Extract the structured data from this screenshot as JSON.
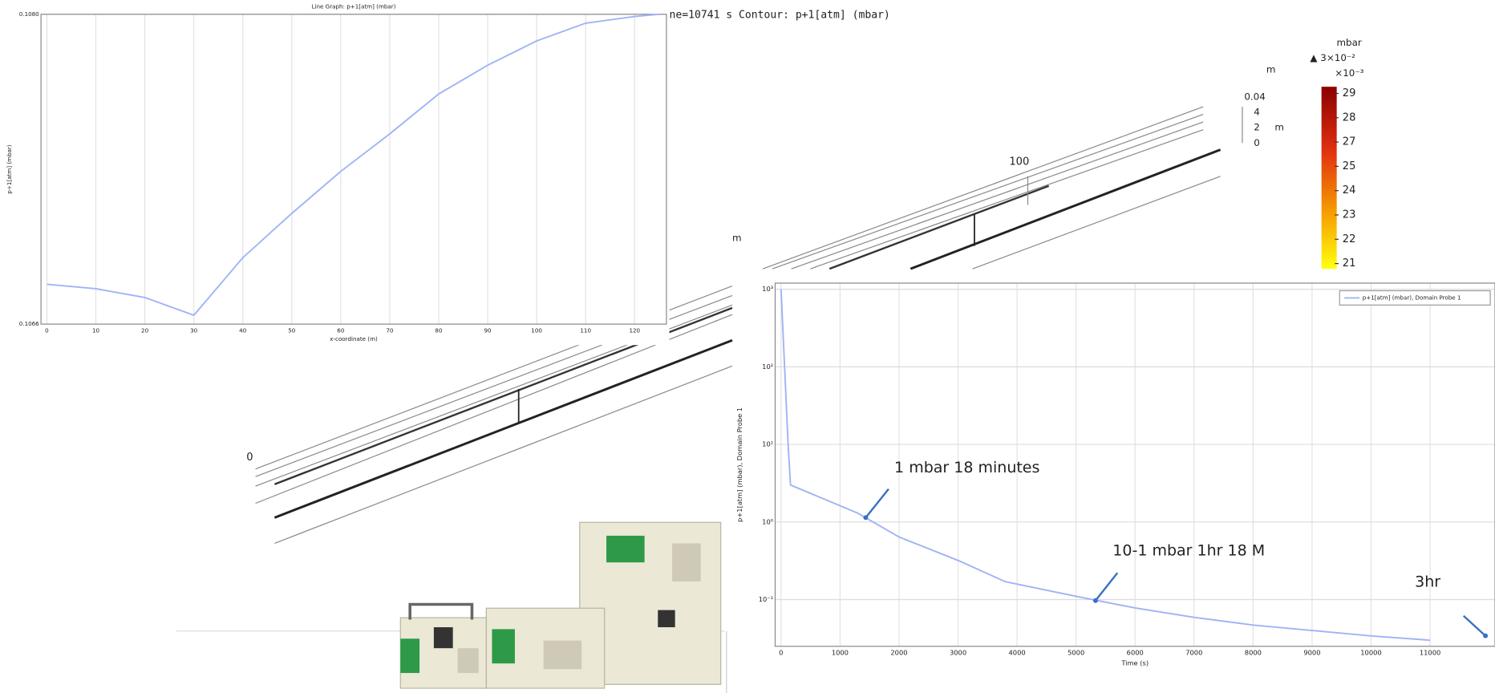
{
  "chart_data": [
    {
      "type": "line",
      "title": "Line Graph: p+1[atm] (mbar)",
      "xlabel": "x-coordinate (m)",
      "ylabel": "p+1[atm] (mbar)",
      "x": [
        0,
        10,
        20,
        30,
        40,
        50,
        60,
        70,
        80,
        90,
        100,
        110,
        120,
        125
      ],
      "series": [
        {
          "color": "#9fb4f5",
          "values": [
            0.10678,
            0.10676,
            0.10672,
            0.10664,
            0.1069,
            0.1071,
            0.10729,
            0.10746,
            0.10764,
            0.10777,
            0.10788,
            0.10796,
            0.10799,
            0.108
          ]
        }
      ],
      "xlim": [
        -1.2,
        126.5
      ],
      "ylim": [
        0.1066,
        0.108
      ],
      "xticks": [
        0,
        10,
        20,
        30,
        40,
        50,
        60,
        70,
        80,
        90,
        100,
        110,
        120
      ],
      "yticks": [
        {
          "value": 0.1066,
          "label": "0.1066"
        },
        {
          "value": 0.108,
          "label": "0.1080"
        }
      ],
      "grid": true,
      "log_y": false
    },
    {
      "type": "line",
      "xlabel": "Time (s)",
      "ylabel": "p+1[atm] (mbar), Domain Probe 1",
      "x": [
        0,
        60,
        120,
        160,
        1300,
        2000,
        3000,
        3800,
        5000,
        6000,
        7000,
        8000,
        9000,
        10000,
        11000
      ],
      "series": [
        {
          "name": "p+1[atm] (mbar), Domain Probe 1",
          "color": "#9fb4f5",
          "values": [
            1000,
            100,
            10,
            3,
            1.3,
            0.64,
            0.32,
            0.17,
            0.11,
            0.078,
            0.059,
            0.047,
            0.04,
            0.034,
            0.03
          ]
        }
      ],
      "xlim": [
        -100,
        12100
      ],
      "ylim": [
        0.025,
        1200
      ],
      "xticks": [
        0,
        1000,
        2000,
        3000,
        4000,
        5000,
        6000,
        7000,
        8000,
        9000,
        10000,
        11000
      ],
      "yticks": [
        {
          "value": 0.1,
          "label": "10⁻¹"
        },
        {
          "value": 1,
          "label": "10⁰"
        },
        {
          "value": 10,
          "label": "10¹"
        },
        {
          "value": 100,
          "label": "10²"
        },
        {
          "value": 1000,
          "label": "10³"
        }
      ],
      "grid": true,
      "log_y": true,
      "legend": "upper right",
      "annotations": [
        "1 mbar 18 minutes",
        "10-1 mbar  1hr 18 M",
        "3hr"
      ]
    }
  ],
  "contour": {
    "title": "ne=10741 s   Contour: p+1[atm] (mbar)",
    "labels": [
      "m",
      "100",
      "0",
      "m"
    ]
  },
  "scale_bar": {
    "unit": "m",
    "ticks": [
      "0.04",
      "4",
      "2",
      "0"
    ],
    "unit2": "m"
  },
  "colorbar": {
    "unit": "mbar",
    "max": "▲ 3×10⁻²",
    "multiplier": "×10⁻³",
    "ticks": [
      29,
      28,
      27,
      25,
      24,
      23,
      22,
      21
    ]
  }
}
